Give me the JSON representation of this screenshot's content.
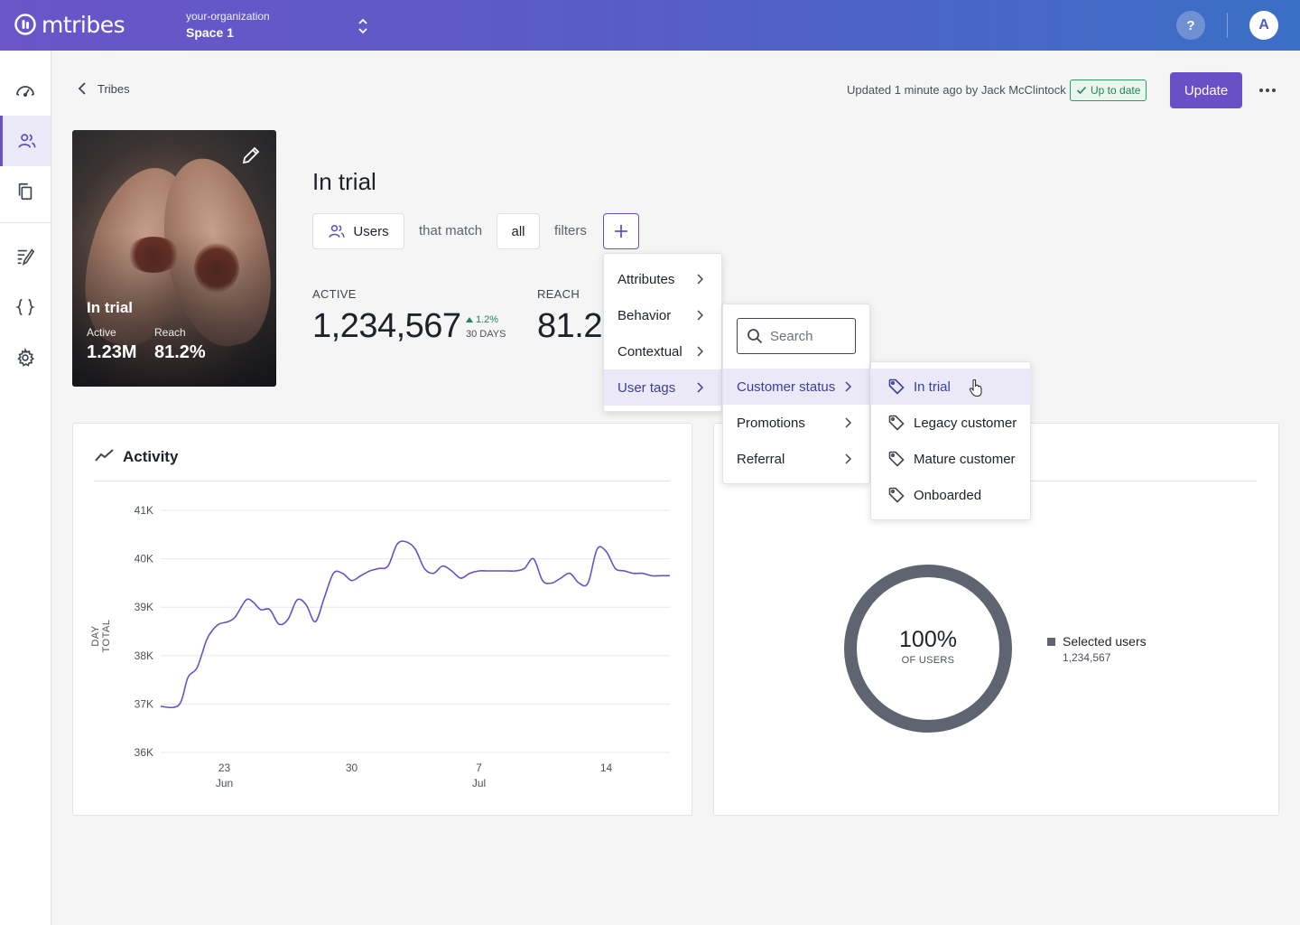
{
  "topbar": {
    "logo_text": "mtribes",
    "org_name": "your-organization",
    "space_name": "Space 1",
    "help_label": "?",
    "avatar_initial": "A"
  },
  "colors": {
    "accent": "#6a4fc7",
    "success": "#23845a",
    "line": "#6a4fc7",
    "donut": "#5e6470"
  },
  "sidebar": {
    "items": [
      {
        "icon": "dashboard-icon",
        "active": false
      },
      {
        "icon": "users-icon",
        "active": true
      },
      {
        "icon": "copy-icon",
        "active": false
      },
      {
        "icon": "edit-list-icon",
        "active": false
      },
      {
        "icon": "code-braces-icon",
        "active": false
      },
      {
        "icon": "gear-icon",
        "active": false
      }
    ]
  },
  "header": {
    "back_label": "Tribes",
    "updated_text": "Updated 1 minute ago by Jack McClintock",
    "status_badge": "Up to date",
    "update_button": "Update"
  },
  "tribe_card": {
    "title": "In trial",
    "active_label": "Active",
    "active_value": "1.23M",
    "reach_label": "Reach",
    "reach_value": "81.2%"
  },
  "tribe": {
    "name": "In trial",
    "subject_button": "Users",
    "match_text": "that match",
    "match_mode": "all",
    "filters_text": "filters"
  },
  "metrics": {
    "active_label": "ACTIVE",
    "active_value": "1,234,567",
    "trend": "1.2%",
    "trend_period": "30 DAYS",
    "reach_label": "REACH",
    "reach_value": "81.2"
  },
  "activity": {
    "title": "Activity",
    "y_axis_title": "DAY TOTAL"
  },
  "chart_data": {
    "type": "line",
    "title": "Activity",
    "ylabel": "DAY TOTAL",
    "xlabel": "",
    "ylim": [
      36000,
      41000
    ],
    "y_ticks": [
      "41K",
      "40K",
      "39K",
      "38K",
      "37K",
      "36K"
    ],
    "y_tick_values": [
      41000,
      40000,
      39000,
      38000,
      37000,
      36000
    ],
    "x_ticks": [
      {
        "day": 23,
        "label": "23",
        "sub": "Jun"
      },
      {
        "day": 30,
        "label": "30",
        "sub": ""
      },
      {
        "day": 37,
        "label": "7",
        "sub": "Jul"
      },
      {
        "day": 44,
        "label": "14",
        "sub": ""
      }
    ],
    "x_range": [
      19.5,
      47.5
    ],
    "grid": true,
    "series": [
      {
        "x": [
          19.5,
          20.5,
          21,
          21.5,
          22,
          22.3,
          22.7,
          23.2,
          23.6,
          24.2,
          24.6,
          25,
          25.5,
          26,
          26.5,
          27,
          27.5,
          28,
          28.5,
          29,
          29.5,
          30,
          30.5,
          31,
          31.5,
          32,
          32.5,
          33,
          33.5,
          34,
          34.5,
          35,
          35.5,
          36,
          36.5,
          37,
          37.5,
          38,
          38.5,
          39,
          39.5,
          40,
          40.5,
          41,
          41.5,
          42,
          42.5,
          43,
          43.5,
          44,
          44.5,
          45,
          45.5,
          46,
          46.5,
          47,
          47.5
        ],
        "y": [
          36950,
          36980,
          37550,
          37750,
          38300,
          38500,
          38650,
          38700,
          38800,
          39150,
          39100,
          38950,
          38950,
          38650,
          38750,
          39150,
          39050,
          38700,
          39200,
          39700,
          39700,
          39550,
          39650,
          39750,
          39800,
          39850,
          40300,
          40350,
          40200,
          39800,
          39700,
          39850,
          39750,
          39600,
          39700,
          39750,
          39750,
          39750,
          39750,
          39750,
          39800,
          40000,
          39550,
          39500,
          39600,
          39700,
          39500,
          39500,
          40200,
          40150,
          39800,
          39750,
          39700,
          39700,
          39650,
          39650,
          39650
        ]
      }
    ]
  },
  "reach_panel": {
    "donut_percent": "100%",
    "donut_sub": "OF USERS",
    "legend_label": "Selected users",
    "legend_value": "1,234,567",
    "fraction": 1.0
  },
  "menus": {
    "level1": [
      "Attributes",
      "Behavior",
      "Contextual",
      "User tags"
    ],
    "level1_active": 3,
    "search_placeholder": "Search",
    "level2": [
      "Customer status",
      "Promotions",
      "Referral"
    ],
    "level2_active": 0,
    "level3": [
      "In trial",
      "Legacy customer",
      "Mature customer",
      "Onboarded"
    ],
    "level3_active": 0
  }
}
